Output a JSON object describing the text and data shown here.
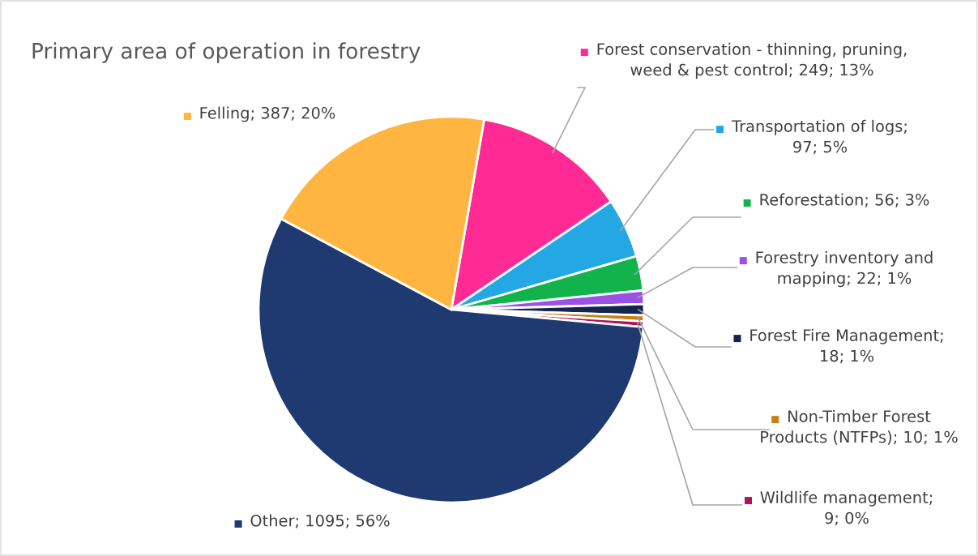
{
  "chart_data": {
    "type": "pie",
    "title": "Primary area of operation in forestry",
    "categories": [
      "Forest conservation - thinning, pruning, weed & pest control",
      "Transportation of logs",
      "Reforestation",
      "Forestry inventory and mapping",
      "Forest Fire Management",
      "Non-Timber Forest Products (NTFPs)",
      "Wildlife management",
      "Other",
      "Felling"
    ],
    "values": [
      249,
      97,
      56,
      22,
      18,
      10,
      9,
      1095,
      387
    ],
    "colors": [
      "#ff2a93",
      "#23a8e4",
      "#12b24c",
      "#9b52e4",
      "#132650",
      "#c88019",
      "#b3105a",
      "#1e3a70",
      "#ffb540"
    ],
    "value_labels": [
      "; 249; 13%",
      "; 97; 5%",
      "; 56; 3%",
      "; 22; 1%",
      "; 18; 1%",
      "; 10; 1%",
      "; 9; 0%",
      "; 1095; 56%",
      "; 387; 20%"
    ],
    "legend": "right"
  }
}
